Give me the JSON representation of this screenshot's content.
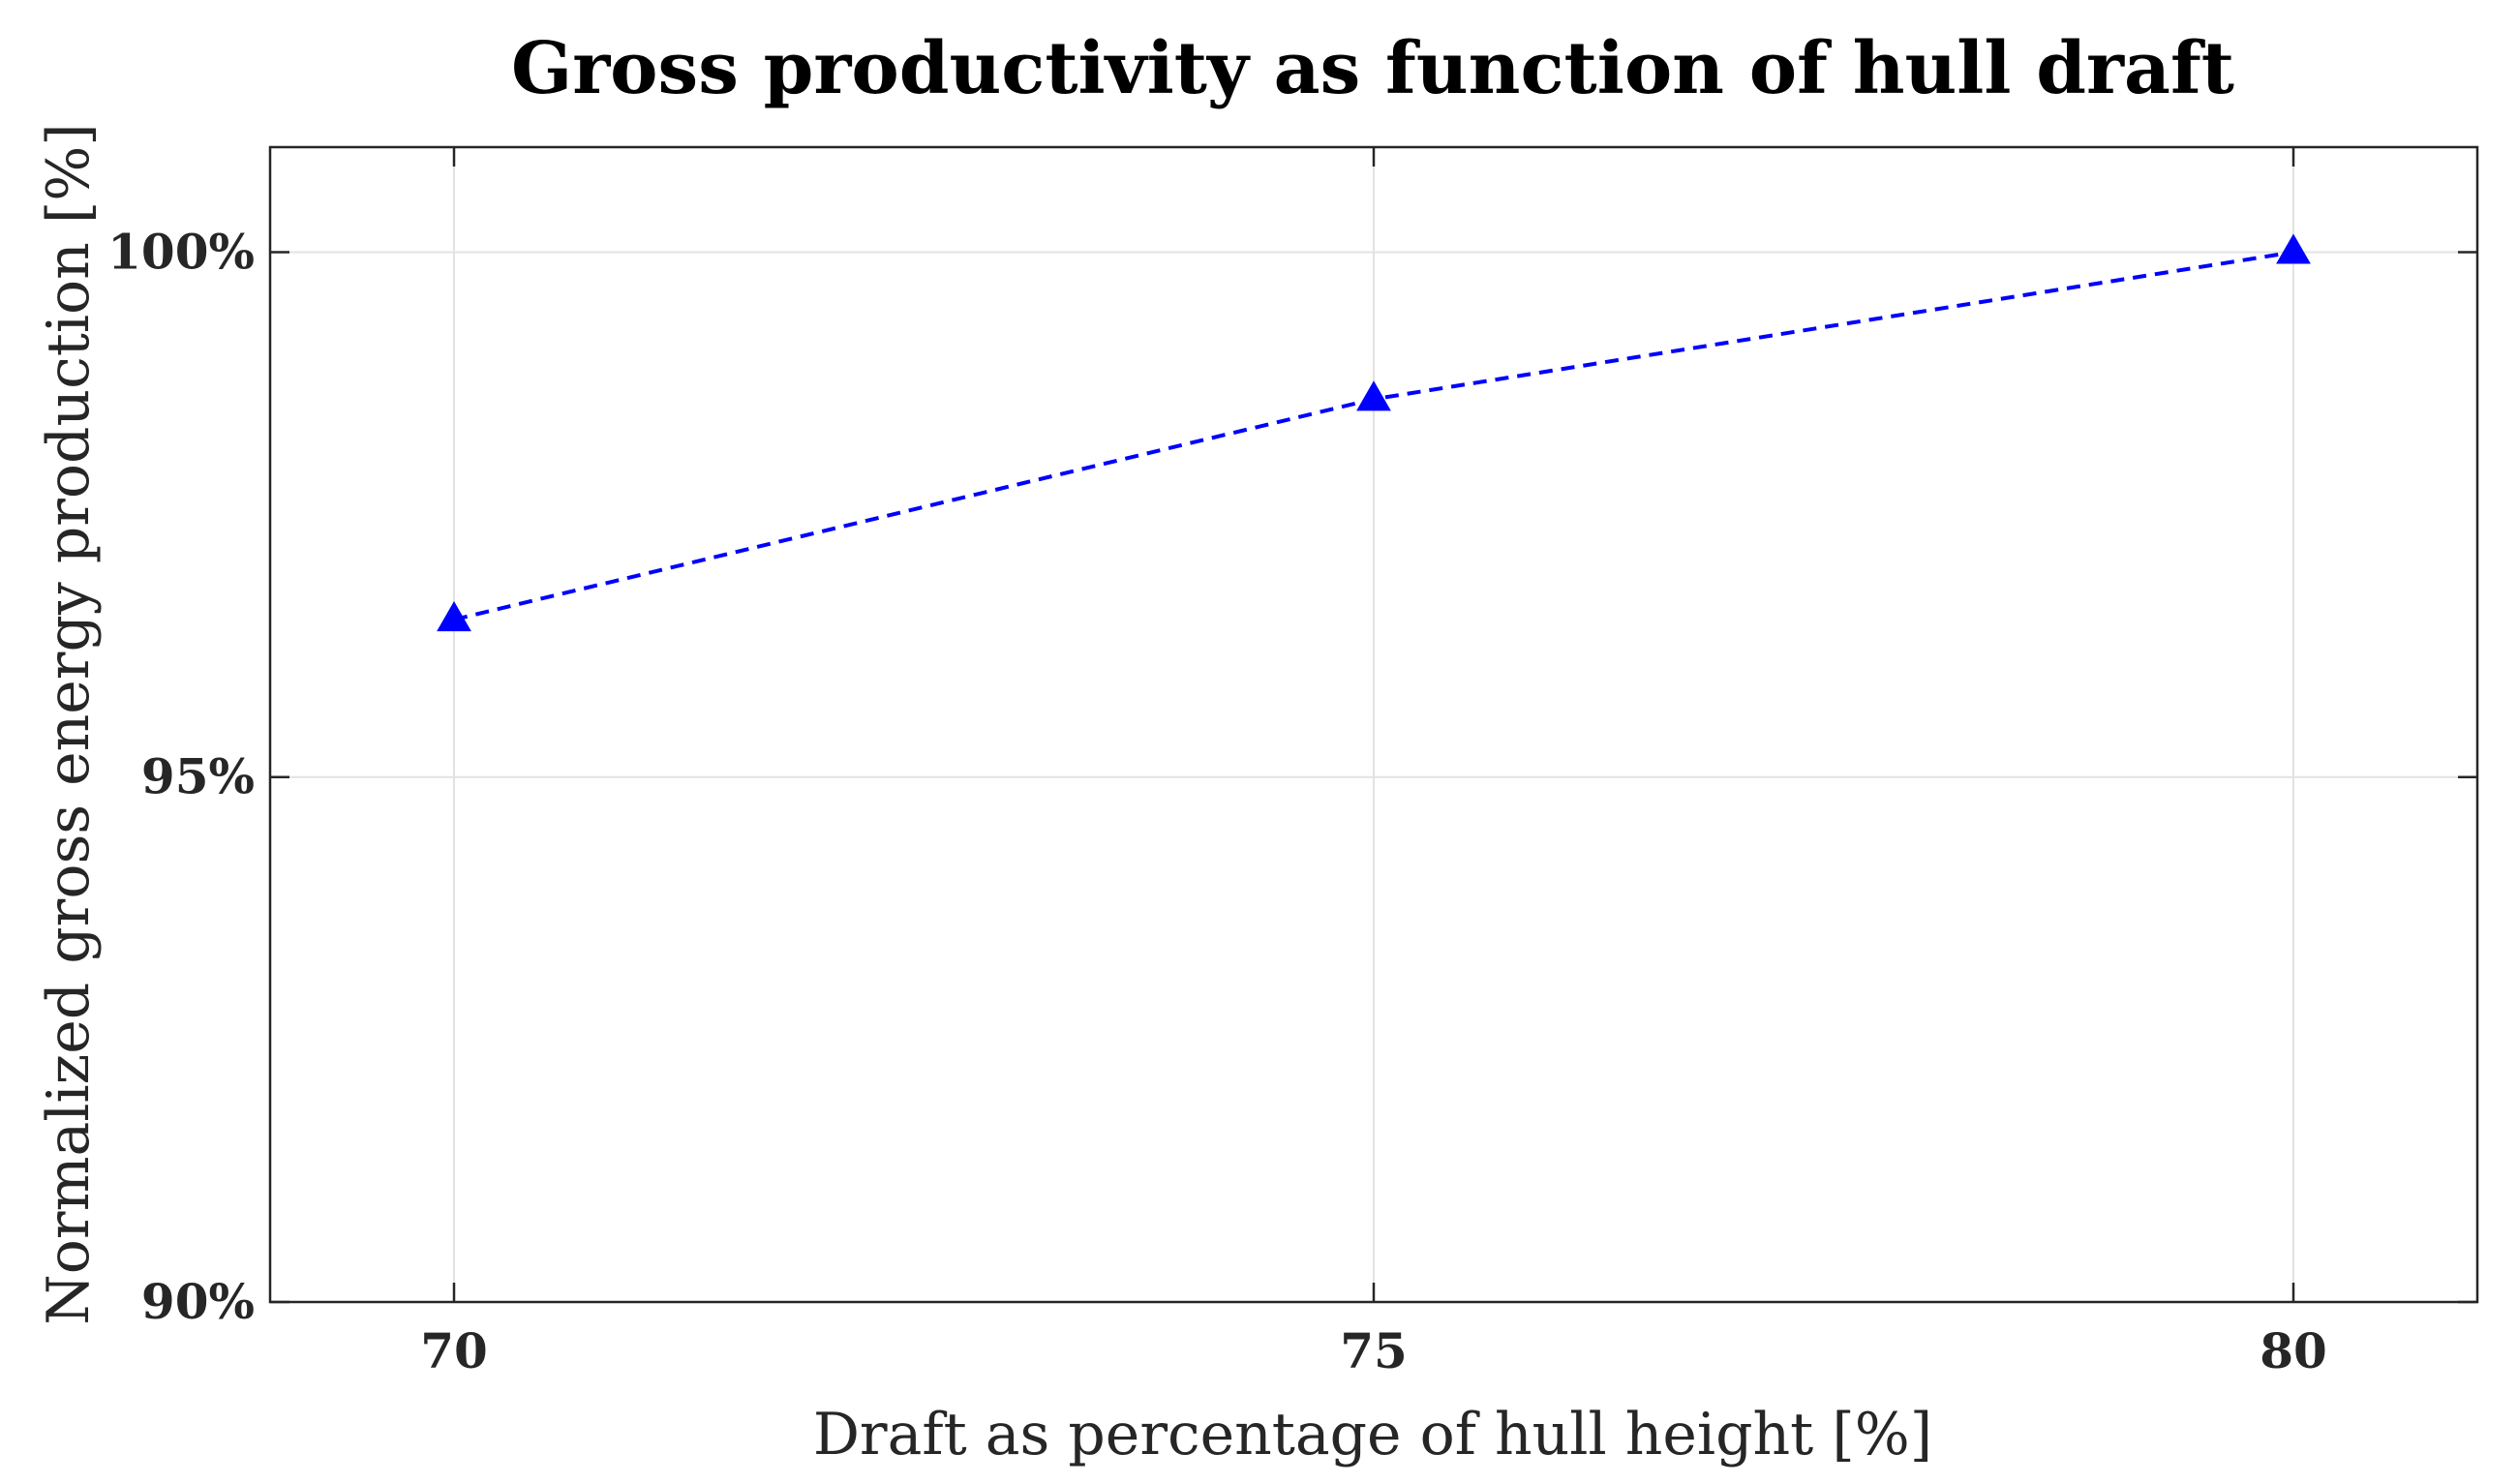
{
  "chart_data": {
    "type": "line",
    "title": "Gross productivity as function of hull draft",
    "xlabel": "Draft as percentage of hull height [%]",
    "ylabel": "Normalized gross energy production [%]",
    "xlim": [
      69,
      81
    ],
    "ylim": [
      90,
      101
    ],
    "x_ticks": [
      70,
      75,
      80
    ],
    "x_tick_labels": [
      "70",
      "75",
      "80"
    ],
    "y_ticks": [
      90,
      95,
      100
    ],
    "y_tick_labels": [
      "90%",
      "95%",
      "100%"
    ],
    "grid": true,
    "series": [
      {
        "x": [
          70,
          75,
          80
        ],
        "y": [
          96.5,
          98.6,
          100.0
        ],
        "color": "#0000ff",
        "line_style": "dashed",
        "marker": "triangle-up"
      }
    ]
  }
}
